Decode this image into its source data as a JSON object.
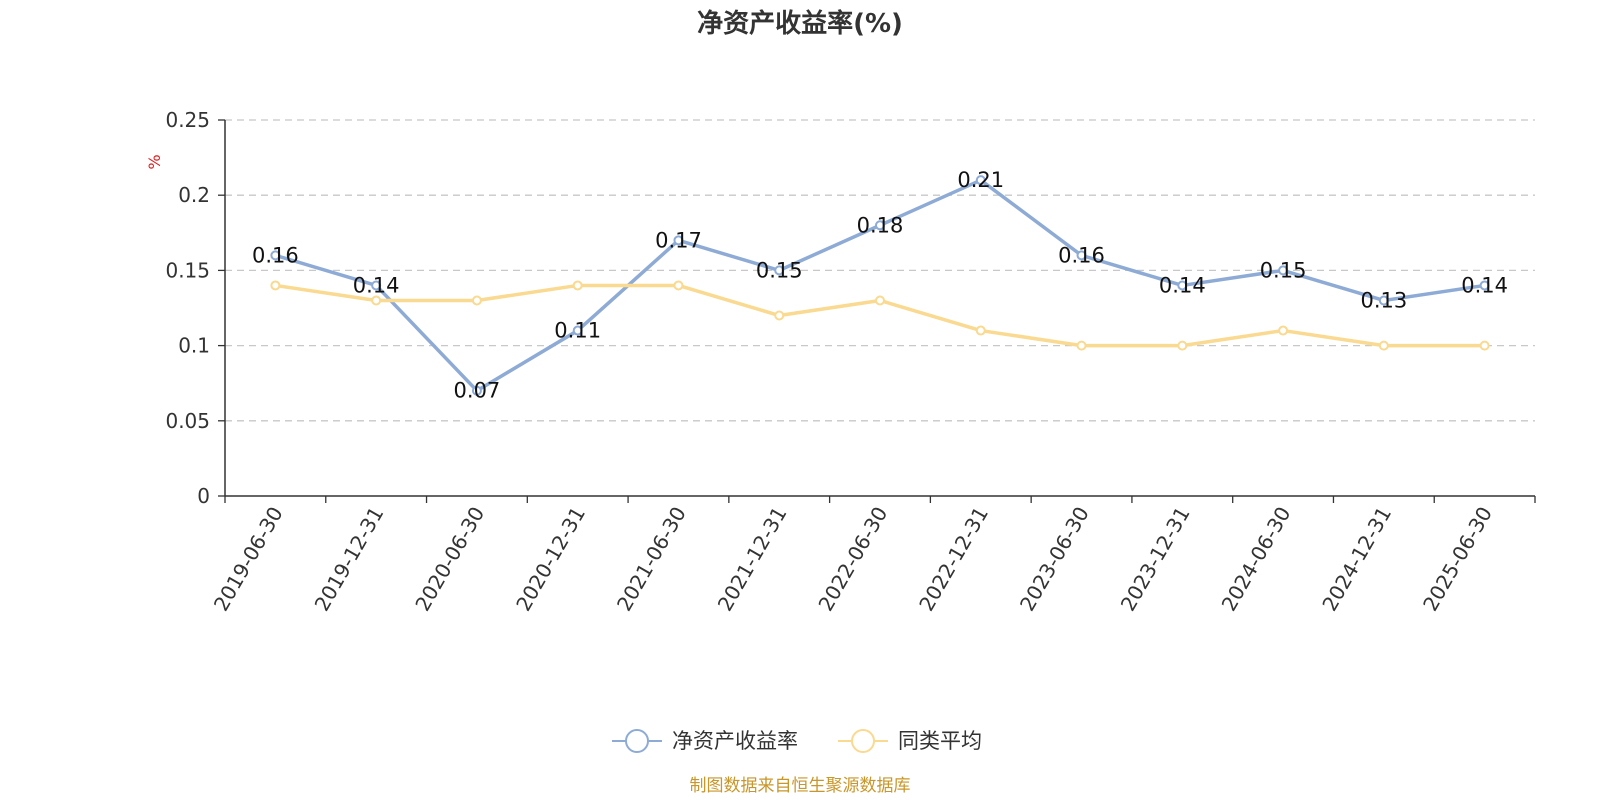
{
  "chart_data": {
    "type": "line",
    "title": "净资产收益率(%)",
    "ylabel": "%",
    "ylim": [
      0,
      0.25
    ],
    "yticks": [
      "0",
      "0.05",
      "0.1",
      "0.15",
      "0.2",
      "0.25"
    ],
    "grid": true,
    "legend": "bottom-center",
    "categories": [
      "2019-06-30",
      "2019-12-31",
      "2020-06-30",
      "2020-12-31",
      "2021-06-30",
      "2021-12-31",
      "2022-06-30",
      "2022-12-31",
      "2023-06-30",
      "2023-12-31",
      "2024-06-30",
      "2024-12-31",
      "2025-06-30"
    ],
    "series": [
      {
        "name": "净资产收益率",
        "color": "#8eabd6",
        "values": [
          0.16,
          0.14,
          0.07,
          0.11,
          0.17,
          0.15,
          0.18,
          0.21,
          0.16,
          0.14,
          0.15,
          0.13,
          0.14
        ],
        "labels": [
          "0.16",
          "0.14",
          "0.07",
          "0.11",
          "0.17",
          "0.15",
          "0.18",
          "0.21",
          "0.16",
          "0.14",
          "0.15",
          "0.13",
          "0.14"
        ]
      },
      {
        "name": "同类平均",
        "color": "#fad990",
        "values": [
          0.14,
          0.13,
          0.13,
          0.14,
          0.14,
          0.12,
          0.13,
          0.11,
          0.1,
          0.1,
          0.11,
          0.1,
          0.1
        ]
      }
    ]
  },
  "footer": {
    "source": "制图数据来自恒生聚源数据库"
  }
}
